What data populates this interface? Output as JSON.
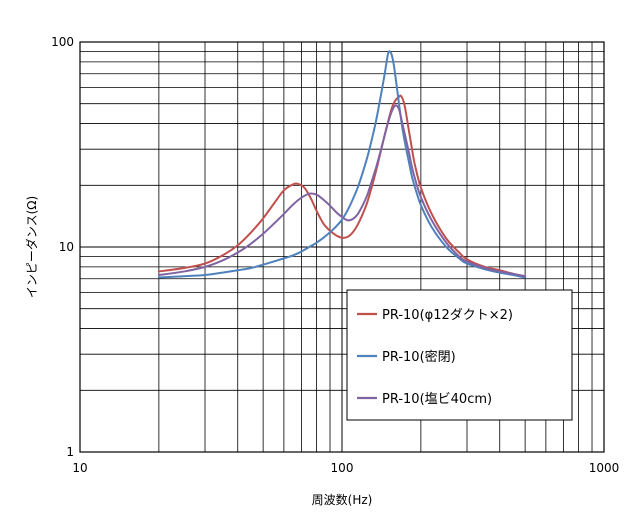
{
  "chart_data": {
    "type": "line",
    "xscale": "log",
    "yscale": "log",
    "xlim": [
      10,
      1000
    ],
    "ylim": [
      1,
      100
    ],
    "xlabel": "周波数(Hz)",
    "ylabel": "インピーダンス(Ω)",
    "x_ticks": [
      "10",
      "100",
      "1000"
    ],
    "y_ticks": [
      "1",
      "10",
      "100"
    ],
    "grid": true,
    "legend_position": "bottom-right",
    "series": [
      {
        "name": "PR-10(φ12ダクト×2)",
        "color": "#c0504d",
        "x": [
          20,
          25,
          30,
          35,
          40,
          45,
          50,
          55,
          60,
          65,
          68,
          72,
          76,
          80,
          85,
          90,
          95,
          100,
          105,
          110,
          115,
          120,
          125,
          130,
          135,
          140,
          145,
          150,
          155,
          160,
          165,
          168,
          172,
          175,
          180,
          185,
          190,
          200,
          220,
          250,
          280,
          300,
          350,
          400,
          450,
          500
        ],
        "y": [
          7.6,
          7.9,
          8.3,
          9.1,
          10.2,
          11.8,
          13.8,
          16.3,
          18.9,
          20.2,
          20.3,
          19.4,
          17.3,
          15.0,
          13.0,
          12.0,
          11.4,
          11.1,
          11.2,
          11.8,
          12.9,
          14.5,
          16.6,
          19.7,
          23.6,
          28.6,
          34.5,
          41.0,
          47.6,
          52.0,
          54.0,
          54.6,
          51.0,
          46.0,
          37.0,
          30.0,
          25.0,
          19.5,
          14.5,
          11.0,
          9.4,
          8.7,
          8.0,
          7.7,
          7.4,
          7.2
        ]
      },
      {
        "name": "PR-10(密閉)",
        "color": "#4f81bd",
        "x": [
          20,
          25,
          30,
          35,
          40,
          45,
          50,
          55,
          60,
          65,
          70,
          75,
          80,
          85,
          90,
          95,
          100,
          105,
          110,
          115,
          120,
          125,
          130,
          135,
          140,
          145,
          148,
          150,
          152,
          155,
          158,
          162,
          165,
          170,
          175,
          180,
          185,
          190,
          200,
          220,
          250,
          280,
          300,
          350,
          400,
          450,
          500
        ],
        "y": [
          7.1,
          7.2,
          7.3,
          7.5,
          7.7,
          7.9,
          8.2,
          8.5,
          8.8,
          9.1,
          9.5,
          10.0,
          10.5,
          11.1,
          11.8,
          12.6,
          13.6,
          15.1,
          17.1,
          19.6,
          23.1,
          27.5,
          33.5,
          41.5,
          53.0,
          68.0,
          80.0,
          88.0,
          90.0,
          86.0,
          76.0,
          60.0,
          50.0,
          38.0,
          31.0,
          26.0,
          22.0,
          19.5,
          16.0,
          12.5,
          10.0,
          8.8,
          8.3,
          7.8,
          7.5,
          7.3,
          7.1
        ]
      },
      {
        "name": "PR-10(塩ビ40cm)",
        "color": "#8064a2",
        "x": [
          20,
          25,
          30,
          35,
          40,
          45,
          50,
          55,
          60,
          65,
          70,
          75,
          80,
          85,
          90,
          95,
          100,
          105,
          110,
          115,
          120,
          125,
          130,
          135,
          140,
          145,
          150,
          155,
          160,
          165,
          170,
          175,
          180,
          185,
          190,
          200,
          220,
          250,
          280,
          300,
          350,
          400,
          450,
          500
        ],
        "y": [
          7.3,
          7.6,
          8.0,
          8.6,
          9.4,
          10.4,
          11.6,
          13.0,
          14.5,
          16.1,
          17.4,
          18.2,
          18.0,
          17.0,
          15.9,
          14.8,
          14.0,
          13.5,
          13.7,
          14.5,
          16.0,
          18.0,
          21.0,
          24.5,
          29.0,
          34.5,
          40.5,
          46.0,
          49.0,
          47.0,
          40.0,
          34.0,
          29.0,
          24.5,
          21.5,
          17.5,
          13.5,
          10.5,
          9.0,
          8.5,
          7.9,
          7.6,
          7.4,
          7.2
        ]
      }
    ]
  }
}
